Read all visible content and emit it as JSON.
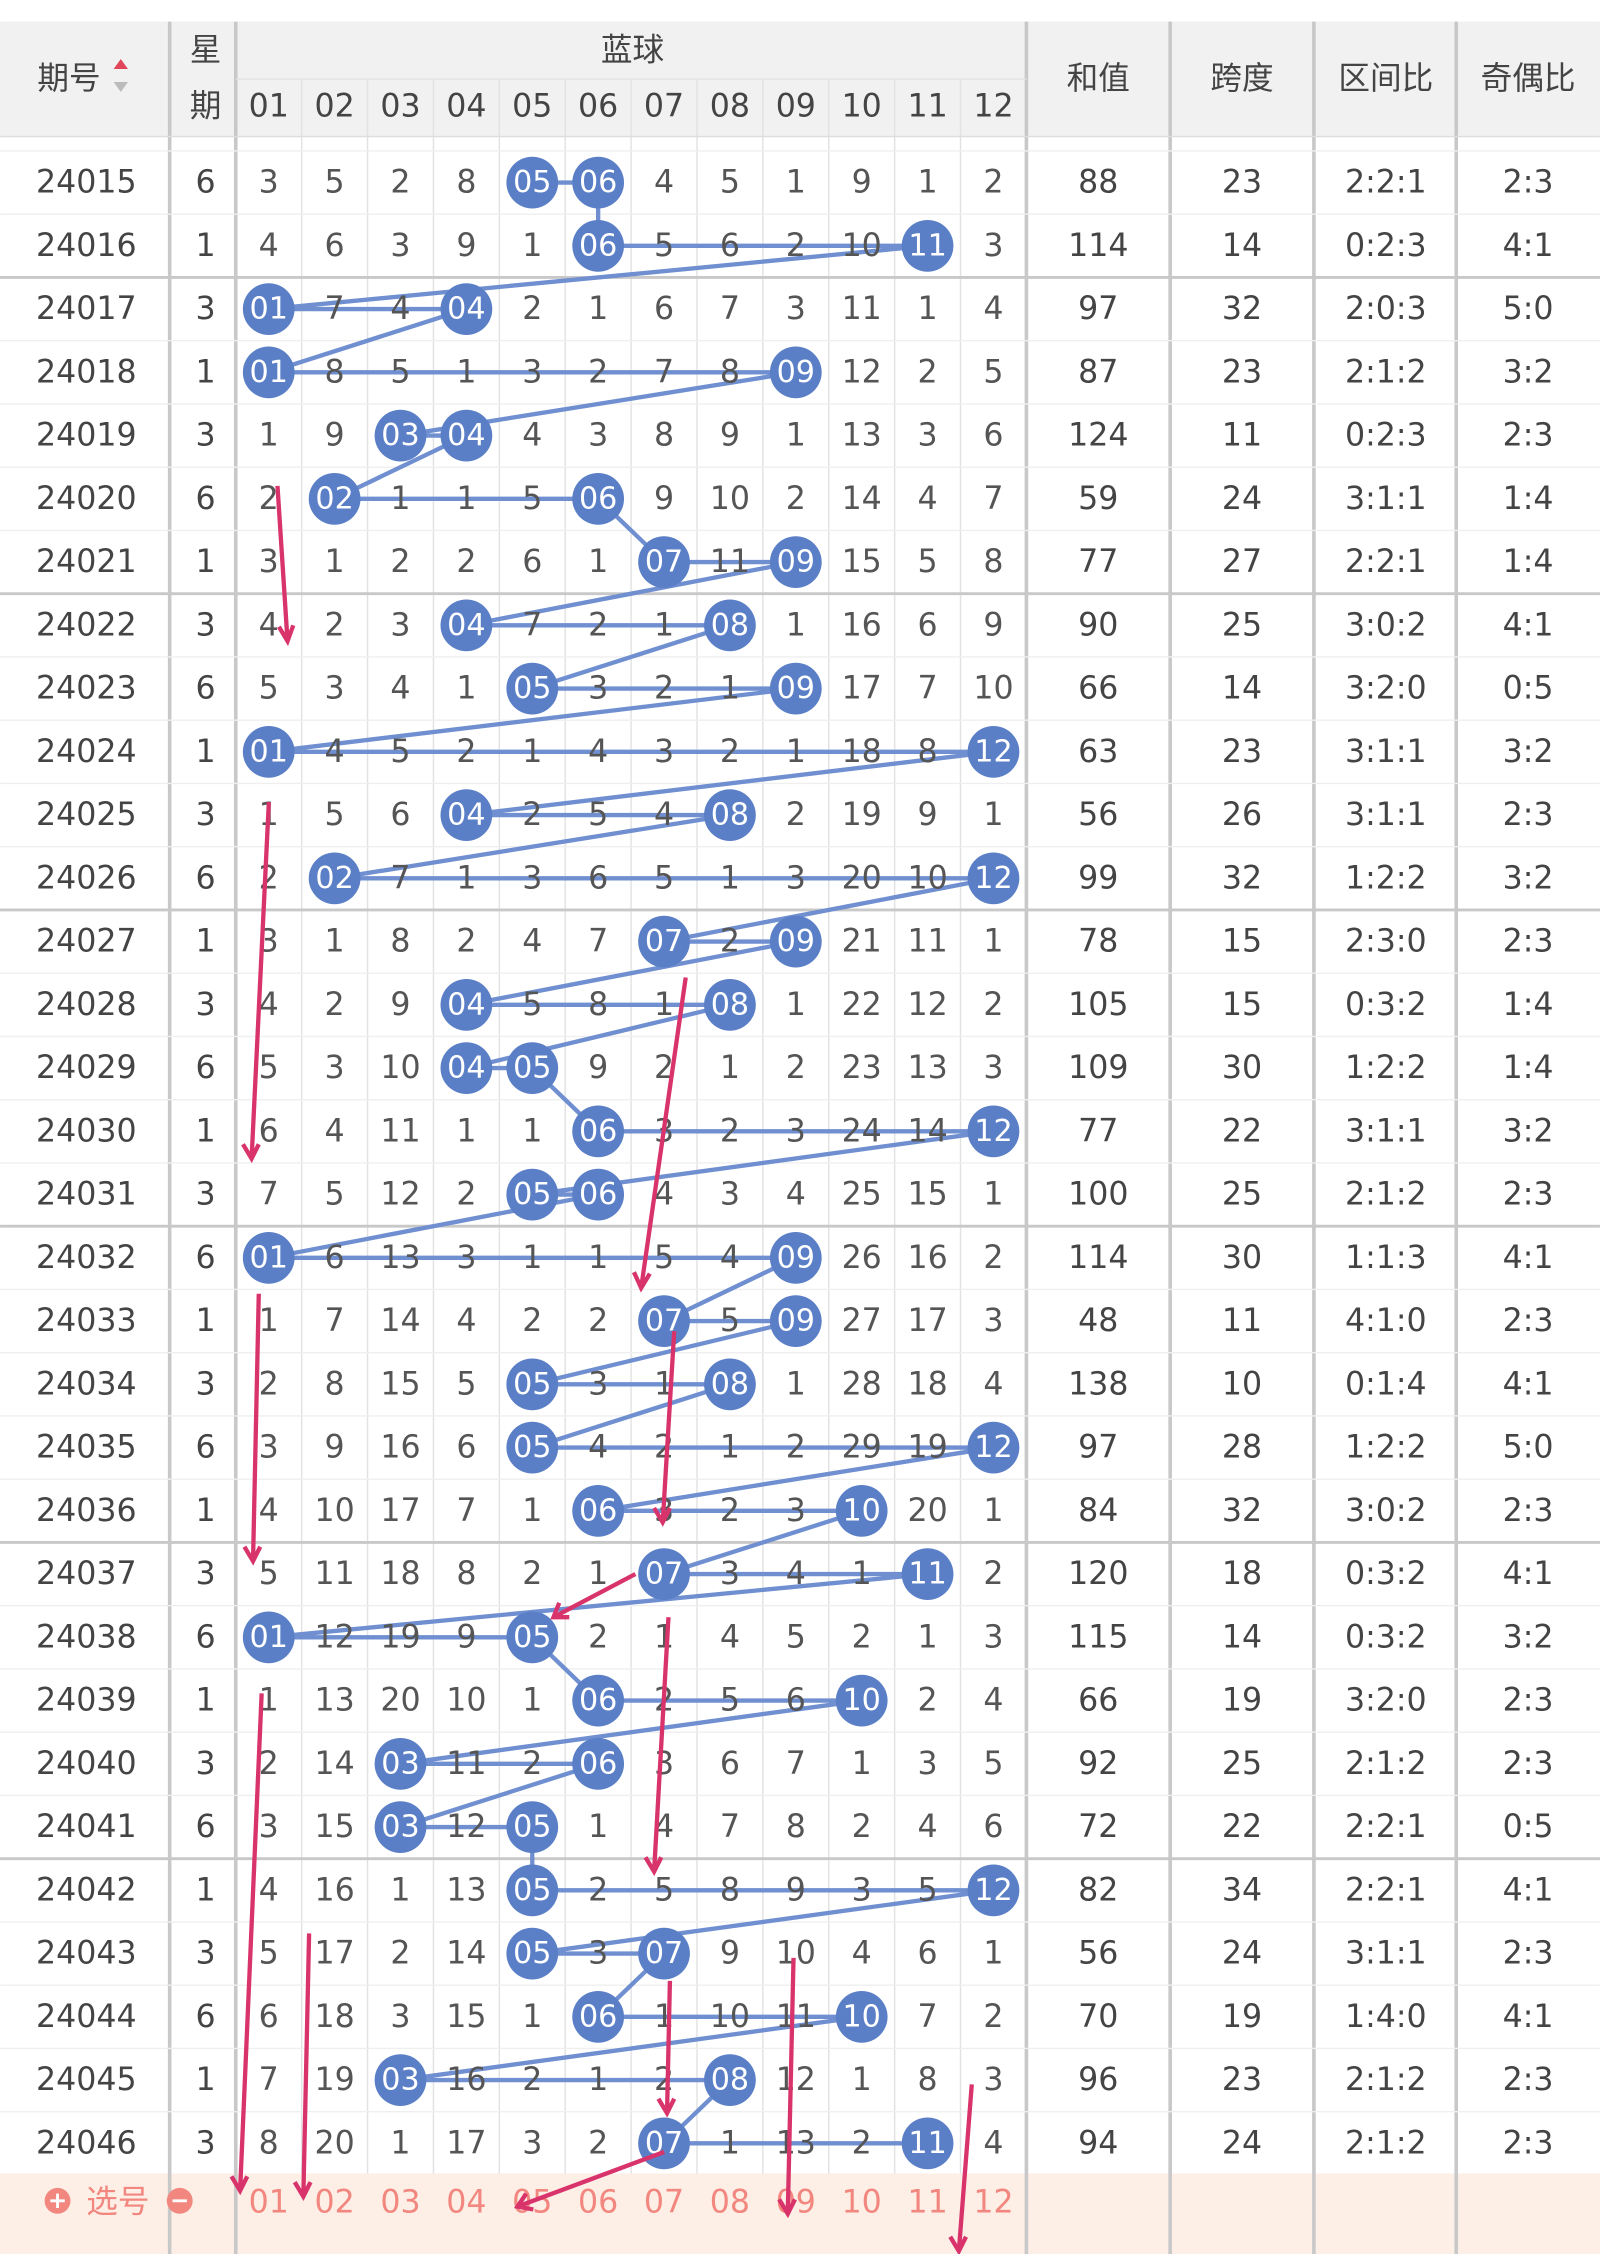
{
  "header": {
    "issue": "期号",
    "weekday_top": "星",
    "weekday_bottom": "期",
    "blue": "蓝球",
    "ball_columns": [
      "01",
      "02",
      "03",
      "04",
      "05",
      "06",
      "07",
      "08",
      "09",
      "10",
      "11",
      "12"
    ],
    "sum": "和值",
    "span": "跨度",
    "zone_ratio": "区间比",
    "odd_even": "奇偶比"
  },
  "rows": [
    {
      "issue": 24015,
      "weekday": 6,
      "cells": [
        3,
        5,
        2,
        8,
        "05",
        "06",
        4,
        5,
        1,
        9,
        1,
        2
      ],
      "sum": 88,
      "span": 23,
      "zone_ratio": "2:2:1",
      "odd_even": "2:3"
    },
    {
      "issue": 24016,
      "weekday": 1,
      "cells": [
        4,
        6,
        3,
        9,
        1,
        "06",
        5,
        6,
        2,
        10,
        "11",
        3
      ],
      "sum": 114,
      "span": 14,
      "zone_ratio": "0:2:3",
      "odd_even": "4:1"
    },
    {
      "issue": 24017,
      "weekday": 3,
      "cells": [
        "01",
        7,
        4,
        "04",
        2,
        1,
        6,
        7,
        3,
        11,
        1,
        4
      ],
      "sum": 97,
      "span": 32,
      "zone_ratio": "2:0:3",
      "odd_even": "5:0"
    },
    {
      "issue": 24018,
      "weekday": 1,
      "cells": [
        "01",
        8,
        5,
        1,
        3,
        2,
        7,
        8,
        "09",
        12,
        2,
        5
      ],
      "sum": 87,
      "span": 23,
      "zone_ratio": "2:1:2",
      "odd_even": "3:2"
    },
    {
      "issue": 24019,
      "weekday": 3,
      "cells": [
        1,
        9,
        "03",
        "04",
        4,
        3,
        8,
        9,
        1,
        13,
        3,
        6
      ],
      "sum": 124,
      "span": 11,
      "zone_ratio": "0:2:3",
      "odd_even": "2:3"
    },
    {
      "issue": 24020,
      "weekday": 6,
      "cells": [
        2,
        "02",
        1,
        1,
        5,
        "06",
        9,
        10,
        2,
        14,
        4,
        7
      ],
      "sum": 59,
      "span": 24,
      "zone_ratio": "3:1:1",
      "odd_even": "1:4"
    },
    {
      "issue": 24021,
      "weekday": 1,
      "cells": [
        3,
        1,
        2,
        2,
        6,
        1,
        "07",
        11,
        "09",
        15,
        5,
        8
      ],
      "sum": 77,
      "span": 27,
      "zone_ratio": "2:2:1",
      "odd_even": "1:4"
    },
    {
      "issue": 24022,
      "weekday": 3,
      "cells": [
        4,
        2,
        3,
        "04",
        7,
        2,
        1,
        "08",
        1,
        16,
        6,
        9
      ],
      "sum": 90,
      "span": 25,
      "zone_ratio": "3:0:2",
      "odd_even": "4:1"
    },
    {
      "issue": 24023,
      "weekday": 6,
      "cells": [
        5,
        3,
        4,
        1,
        "05",
        3,
        2,
        1,
        "09",
        17,
        7,
        10
      ],
      "sum": 66,
      "span": 14,
      "zone_ratio": "3:2:0",
      "odd_even": "0:5"
    },
    {
      "issue": 24024,
      "weekday": 1,
      "cells": [
        "01",
        4,
        5,
        2,
        1,
        4,
        3,
        2,
        1,
        18,
        8,
        "12"
      ],
      "sum": 63,
      "span": 23,
      "zone_ratio": "3:1:1",
      "odd_even": "3:2"
    },
    {
      "issue": 24025,
      "weekday": 3,
      "cells": [
        1,
        5,
        6,
        "04",
        2,
        5,
        4,
        "08",
        2,
        19,
        9,
        1
      ],
      "sum": 56,
      "span": 26,
      "zone_ratio": "3:1:1",
      "odd_even": "2:3"
    },
    {
      "issue": 24026,
      "weekday": 6,
      "cells": [
        2,
        "02",
        7,
        1,
        3,
        6,
        5,
        1,
        3,
        20,
        10,
        "12"
      ],
      "sum": 99,
      "span": 32,
      "zone_ratio": "1:2:2",
      "odd_even": "3:2"
    },
    {
      "issue": 24027,
      "weekday": 1,
      "cells": [
        3,
        1,
        8,
        2,
        4,
        7,
        "07",
        2,
        "09",
        21,
        11,
        1
      ],
      "sum": 78,
      "span": 15,
      "zone_ratio": "2:3:0",
      "odd_even": "2:3"
    },
    {
      "issue": 24028,
      "weekday": 3,
      "cells": [
        4,
        2,
        9,
        "04",
        5,
        8,
        1,
        "08",
        1,
        22,
        12,
        2
      ],
      "sum": 105,
      "span": 15,
      "zone_ratio": "0:3:2",
      "odd_even": "1:4"
    },
    {
      "issue": 24029,
      "weekday": 6,
      "cells": [
        5,
        3,
        10,
        "04",
        "05",
        9,
        2,
        1,
        2,
        23,
        13,
        3
      ],
      "sum": 109,
      "span": 30,
      "zone_ratio": "1:2:2",
      "odd_even": "1:4"
    },
    {
      "issue": 24030,
      "weekday": 1,
      "cells": [
        6,
        4,
        11,
        1,
        1,
        "06",
        3,
        2,
        3,
        24,
        14,
        "12"
      ],
      "sum": 77,
      "span": 22,
      "zone_ratio": "3:1:1",
      "odd_even": "3:2"
    },
    {
      "issue": 24031,
      "weekday": 3,
      "cells": [
        7,
        5,
        12,
        2,
        "05",
        "06",
        4,
        3,
        4,
        25,
        15,
        1
      ],
      "sum": 100,
      "span": 25,
      "zone_ratio": "2:1:2",
      "odd_even": "2:3"
    },
    {
      "issue": 24032,
      "weekday": 6,
      "cells": [
        "01",
        6,
        13,
        3,
        1,
        1,
        5,
        4,
        "09",
        26,
        16,
        2
      ],
      "sum": 114,
      "span": 30,
      "zone_ratio": "1:1:3",
      "odd_even": "4:1"
    },
    {
      "issue": 24033,
      "weekday": 1,
      "cells": [
        1,
        7,
        14,
        4,
        2,
        2,
        "07",
        5,
        "09",
        27,
        17,
        3
      ],
      "sum": 48,
      "span": 11,
      "zone_ratio": "4:1:0",
      "odd_even": "2:3"
    },
    {
      "issue": 24034,
      "weekday": 3,
      "cells": [
        2,
        8,
        15,
        5,
        "05",
        3,
        1,
        "08",
        1,
        28,
        18,
        4
      ],
      "sum": 138,
      "span": 10,
      "zone_ratio": "0:1:4",
      "odd_even": "4:1"
    },
    {
      "issue": 24035,
      "weekday": 6,
      "cells": [
        3,
        9,
        16,
        6,
        "05",
        4,
        2,
        1,
        2,
        29,
        19,
        "12"
      ],
      "sum": 97,
      "span": 28,
      "zone_ratio": "1:2:2",
      "odd_even": "5:0"
    },
    {
      "issue": 24036,
      "weekday": 1,
      "cells": [
        4,
        10,
        17,
        7,
        1,
        "06",
        3,
        2,
        3,
        "10",
        20,
        1
      ],
      "sum": 84,
      "span": 32,
      "zone_ratio": "3:0:2",
      "odd_even": "2:3"
    },
    {
      "issue": 24037,
      "weekday": 3,
      "cells": [
        5,
        11,
        18,
        8,
        2,
        1,
        "07",
        3,
        4,
        1,
        "11",
        2
      ],
      "sum": 120,
      "span": 18,
      "zone_ratio": "0:3:2",
      "odd_even": "4:1"
    },
    {
      "issue": 24038,
      "weekday": 6,
      "cells": [
        "01",
        12,
        19,
        9,
        "05",
        2,
        1,
        4,
        5,
        2,
        1,
        3
      ],
      "sum": 115,
      "span": 14,
      "zone_ratio": "0:3:2",
      "odd_even": "3:2"
    },
    {
      "issue": 24039,
      "weekday": 1,
      "cells": [
        1,
        13,
        20,
        10,
        1,
        "06",
        2,
        5,
        6,
        "10",
        2,
        4
      ],
      "sum": 66,
      "span": 19,
      "zone_ratio": "3:2:0",
      "odd_even": "2:3"
    },
    {
      "issue": 24040,
      "weekday": 3,
      "cells": [
        2,
        14,
        "03",
        11,
        2,
        "06",
        3,
        6,
        7,
        1,
        3,
        5
      ],
      "sum": 92,
      "span": 25,
      "zone_ratio": "2:1:2",
      "odd_even": "2:3"
    },
    {
      "issue": 24041,
      "weekday": 6,
      "cells": [
        3,
        15,
        "03",
        12,
        "05",
        1,
        4,
        7,
        8,
        2,
        4,
        6
      ],
      "sum": 72,
      "span": 22,
      "zone_ratio": "2:2:1",
      "odd_even": "0:5"
    },
    {
      "issue": 24042,
      "weekday": 1,
      "cells": [
        4,
        16,
        1,
        13,
        "05",
        2,
        5,
        8,
        9,
        3,
        5,
        "12"
      ],
      "sum": 82,
      "span": 34,
      "zone_ratio": "2:2:1",
      "odd_even": "4:1"
    },
    {
      "issue": 24043,
      "weekday": 3,
      "cells": [
        5,
        17,
        2,
        14,
        "05",
        3,
        "07",
        9,
        10,
        4,
        6,
        1
      ],
      "sum": 56,
      "span": 24,
      "zone_ratio": "3:1:1",
      "odd_even": "2:3"
    },
    {
      "issue": 24044,
      "weekday": 6,
      "cells": [
        6,
        18,
        3,
        15,
        1,
        "06",
        1,
        10,
        11,
        "10",
        7,
        2
      ],
      "sum": 70,
      "span": 19,
      "zone_ratio": "1:4:0",
      "odd_even": "4:1"
    },
    {
      "issue": 24045,
      "weekday": 1,
      "cells": [
        7,
        19,
        "03",
        16,
        2,
        1,
        2,
        "08",
        12,
        1,
        8,
        3
      ],
      "sum": 96,
      "span": 23,
      "zone_ratio": "2:1:2",
      "odd_even": "2:3"
    },
    {
      "issue": 24046,
      "weekday": 3,
      "cells": [
        8,
        20,
        1,
        17,
        3,
        2,
        "07",
        1,
        13,
        2,
        "11",
        4
      ],
      "sum": 94,
      "span": 24,
      "zone_ratio": "2:1:2",
      "odd_even": "2:3"
    }
  ],
  "footer": {
    "label": "选号"
  }
}
